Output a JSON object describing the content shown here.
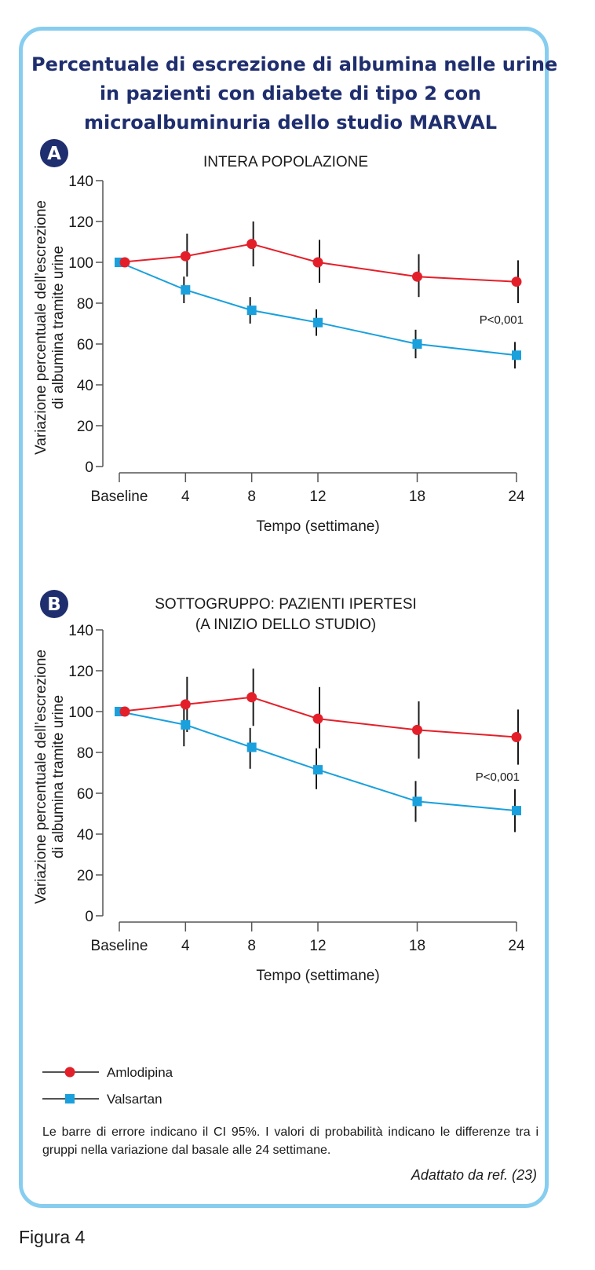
{
  "title_lines": [
    "Percentuale di escrezione di albumina nelle urine",
    "in pazienti con diabete di tipo 2 con",
    "microalbuminuria dello studio MARVAL"
  ],
  "colors": {
    "amlodipina": "#e3202a",
    "valsartan": "#1aa0dc",
    "title": "#1f2e6e",
    "frame": "#87cdef",
    "badge": "#1f2e6e"
  },
  "chart_data": [
    {
      "type": "line",
      "badge": "A",
      "title_lines": [
        "INTERA POPOLAZIONE"
      ],
      "ylabel_lines": [
        "Variazione percentuale dell’escrezione",
        "di albumina tramite urine"
      ],
      "xlabel": "Tempo (settimane)",
      "x": [
        0,
        4,
        8,
        12,
        18,
        24
      ],
      "x_tick_labels": [
        "Baseline",
        "4",
        "8",
        "12",
        "18",
        "24"
      ],
      "ylim": [
        0,
        140
      ],
      "y_ticks": [
        0,
        20,
        40,
        60,
        80,
        100,
        120,
        140
      ],
      "annotation": "P<0,001",
      "series": [
        {
          "name": "Amlodipina",
          "values": [
            100,
            103,
            109,
            100,
            93,
            90.5
          ],
          "ci_low": [
            null,
            93,
            98,
            90,
            83,
            80
          ],
          "ci_high": [
            null,
            114,
            120,
            111,
            104,
            101
          ]
        },
        {
          "name": "Valsartan",
          "values": [
            100,
            86.5,
            76.5,
            70.5,
            60,
            54.5
          ],
          "ci_low": [
            null,
            80,
            70,
            64,
            53,
            48
          ],
          "ci_high": [
            null,
            93,
            83,
            77,
            67,
            61
          ]
        }
      ]
    },
    {
      "type": "line",
      "badge": "B",
      "title_lines": [
        "SOTTOGRUPPO: PAZIENTI IPERTESI",
        "(A INIZIO DELLO STUDIO)"
      ],
      "ylabel_lines": [
        "Variazione percentuale dell’escrezione",
        "di albumina tramite urine"
      ],
      "xlabel": "Tempo (settimane)",
      "x": [
        0,
        4,
        8,
        12,
        18,
        24
      ],
      "x_tick_labels": [
        "Baseline",
        "4",
        "8",
        "12",
        "18",
        "24"
      ],
      "ylim": [
        0,
        140
      ],
      "y_ticks": [
        0,
        20,
        40,
        60,
        80,
        100,
        120,
        140
      ],
      "annotation": "P<0,001",
      "series": [
        {
          "name": "Amlodipina",
          "values": [
            100,
            103.5,
            107,
            96.5,
            91,
            87.5
          ],
          "ci_low": [
            null,
            90,
            93,
            82,
            77,
            74
          ],
          "ci_high": [
            null,
            117,
            121,
            112,
            105,
            101
          ]
        },
        {
          "name": "Valsartan",
          "values": [
            100,
            93.5,
            82.5,
            71.5,
            56,
            51.5
          ],
          "ci_low": [
            null,
            83,
            72,
            62,
            46,
            41
          ],
          "ci_high": [
            null,
            103,
            92,
            82,
            66,
            62
          ]
        }
      ]
    }
  ],
  "legend": [
    {
      "label": "Amlodipina",
      "marker": "circle"
    },
    {
      "label": "Valsartan",
      "marker": "square"
    }
  ],
  "footnote": "Le barre di errore indicano il CI 95%. I valori di probabilità indicano le differenze tra i gruppi nella variazione dal basale alle 24 settimane.",
  "source": "Adattato da ref. (23)",
  "figure_label": "Figura 4"
}
